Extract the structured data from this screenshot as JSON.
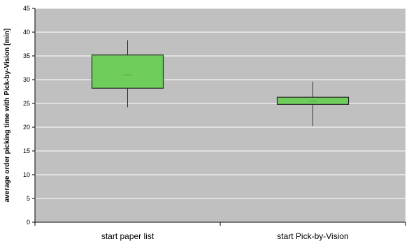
{
  "chart_data": {
    "type": "boxplot",
    "title": "",
    "xlabel": "",
    "ylabel": "average order picking time with Pick-by-Vision [min]",
    "ylim": [
      0,
      45
    ],
    "ytick_step": 5,
    "grid": true,
    "legend": "none",
    "colors": {
      "plot_bg": "#c0c0c0",
      "box_fill": "#6fcd5c",
      "box_stroke": "#2a2a2a",
      "median": "#5a9f4c",
      "grid": "#ffffff",
      "axis": "#000000"
    },
    "categories": [
      "start paper list",
      "start Pick-by-Vision"
    ],
    "series": [
      {
        "category": "start paper list",
        "min": 24.2,
        "q1": 28.2,
        "median": 31.0,
        "q3": 35.2,
        "max": 38.3
      },
      {
        "category": "start Pick-by-Vision",
        "min": 20.3,
        "q1": 24.8,
        "median": 25.5,
        "q3": 26.3,
        "max": 29.6
      }
    ]
  }
}
